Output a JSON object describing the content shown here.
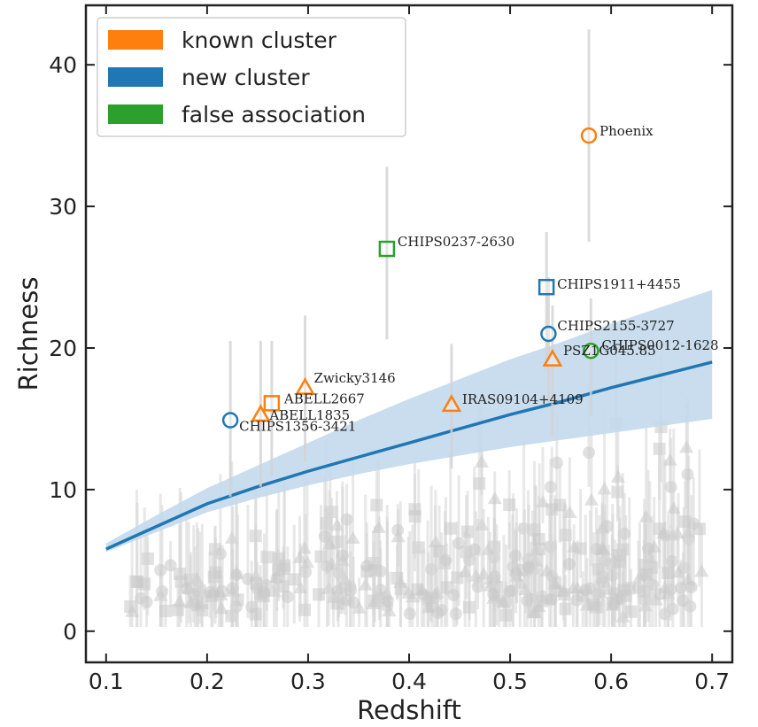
{
  "chart_data": {
    "type": "scatter",
    "title": "",
    "xlabel": "Redshift",
    "ylabel": "Richness",
    "xlim": [
      0.08,
      0.72
    ],
    "ylim": [
      -2.2,
      44.2
    ],
    "xticks": [
      0.1,
      0.2,
      0.3,
      0.4,
      0.5,
      0.6,
      0.7
    ],
    "xtick_labels": [
      "0.1",
      "0.2",
      "0.3",
      "0.4",
      "0.5",
      "0.6",
      "0.7"
    ],
    "yticks": [
      0,
      10,
      20,
      30,
      40
    ],
    "ytick_labels": [
      "0",
      "10",
      "20",
      "30",
      "40"
    ],
    "grid": false,
    "legend_position": "top-left",
    "legend": [
      {
        "label": "known cluster",
        "color": "#ff7f0e"
      },
      {
        "label": "new cluster",
        "color": "#1f77b4"
      },
      {
        "label": "false association",
        "color": "#2ca02c"
      }
    ],
    "relation": {
      "color": "#1f77b4",
      "band_color": "#c3d9ec",
      "x": [
        0.1,
        0.15,
        0.2,
        0.25,
        0.3,
        0.35,
        0.4,
        0.45,
        0.5,
        0.55,
        0.6,
        0.65,
        0.7
      ],
      "y": [
        5.8,
        7.4,
        9.0,
        10.2,
        11.3,
        12.3,
        13.3,
        14.3,
        15.3,
        16.2,
        17.2,
        18.1,
        19.0
      ],
      "upper": [
        6.2,
        8.2,
        10.1,
        11.7,
        13.3,
        14.9,
        16.4,
        17.8,
        19.2,
        20.4,
        21.7,
        22.9,
        24.1
      ],
      "lower": [
        5.6,
        7.0,
        8.4,
        9.4,
        10.3,
        11.1,
        11.8,
        12.4,
        13.0,
        13.5,
        14.0,
        14.5,
        15.0
      ]
    },
    "highlighted": [
      {
        "name": "Phoenix",
        "x": 0.578,
        "y": 35.0,
        "marker": "circle",
        "color": "#ff7f0e",
        "err": [
          27.5,
          42.5
        ]
      },
      {
        "name": "CHIPS0237-2630",
        "x": 0.378,
        "y": 27.0,
        "marker": "square",
        "color": "#2ca02c",
        "err": [
          20.6,
          32.8
        ]
      },
      {
        "name": "CHIPS1911+4455",
        "x": 0.536,
        "y": 24.3,
        "marker": "square",
        "color": "#1f77b4",
        "err": [
          18.5,
          28.2
        ]
      },
      {
        "name": "CHIPS2155-3727",
        "x": 0.538,
        "y": 21.0,
        "marker": "circle",
        "color": "#1f77b4",
        "err": [
          16.2,
          25.0
        ]
      },
      {
        "name": "CHIPS0012-1628",
        "x": 0.58,
        "y": 19.8,
        "marker": "circle",
        "color": "#2ca02c",
        "err": [
          15.2,
          23.5
        ]
      },
      {
        "name": "PSZ1G045.85",
        "x": 0.542,
        "y": 19.2,
        "marker": "triangle",
        "color": "#ff7f0e",
        "err": [
          13.8,
          23.0
        ]
      },
      {
        "name": "Zwicky3146",
        "x": 0.297,
        "y": 17.2,
        "marker": "triangle",
        "color": "#ff7f0e",
        "err": [
          12.0,
          22.3
        ]
      },
      {
        "name": "ABELL2667",
        "x": 0.264,
        "y": 16.1,
        "marker": "square",
        "color": "#ff7f0e",
        "err": [
          11.0,
          20.5
        ]
      },
      {
        "name": "ABELL1835",
        "x": 0.253,
        "y": 15.3,
        "marker": "triangle",
        "color": "#ff7f0e",
        "err": [
          10.2,
          20.5
        ]
      },
      {
        "name": "IRAS09104+4109",
        "x": 0.442,
        "y": 16.0,
        "marker": "triangle",
        "color": "#ff7f0e",
        "err": [
          11.5,
          20.3
        ]
      },
      {
        "name": "CHIPS1356-3421",
        "x": 0.223,
        "y": 14.9,
        "marker": "circle",
        "color": "#1f77b4",
        "err": [
          9.5,
          20.5
        ]
      }
    ],
    "background_points": {
      "color": "#bdbdbd",
      "count": 320,
      "x_range": [
        0.12,
        0.69
      ],
      "y_range": [
        0.5,
        18.0
      ]
    }
  }
}
